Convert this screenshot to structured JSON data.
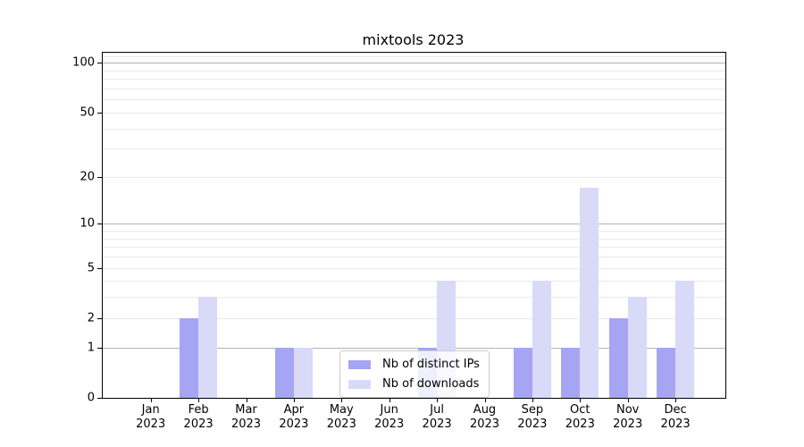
{
  "figure": {
    "background": "#ffffff"
  },
  "chart_data": {
    "type": "bar",
    "title": "mixtools 2023",
    "categories": [
      "Jan",
      "Feb",
      "Mar",
      "Apr",
      "May",
      "Jun",
      "Jul",
      "Aug",
      "Sep",
      "Oct",
      "Nov",
      "Dec"
    ],
    "category_year": "2023",
    "series": [
      {
        "name": "Nb of distinct IPs",
        "color": "#a5a5f3",
        "values": [
          0,
          2,
          0,
          1,
          0,
          0,
          1,
          0,
          1,
          1,
          2,
          1
        ]
      },
      {
        "name": "Nb of downloads",
        "color": "#d9d9f8",
        "values": [
          0,
          3,
          0,
          1,
          0,
          0,
          4,
          0,
          4,
          17,
          3,
          4
        ]
      }
    ],
    "y_axis": {
      "scale": "log10(1+x)",
      "min": 0,
      "max": 115,
      "tick_values": [
        100,
        50,
        20,
        10,
        5,
        2,
        1,
        0
      ],
      "tick_labels": [
        "100",
        "50",
        "20",
        "10",
        "5",
        "2",
        "1",
        "0"
      ]
    },
    "grid": {
      "major_values": [
        1,
        10,
        100
      ],
      "minor_values": [
        2,
        3,
        4,
        5,
        6,
        7,
        8,
        9,
        20,
        30,
        40,
        50,
        60,
        70,
        80,
        90,
        110
      ],
      "major_color": "#b4b4b4",
      "minor_color": "#e9e9e9"
    },
    "legend": {
      "position": "lower center"
    }
  }
}
